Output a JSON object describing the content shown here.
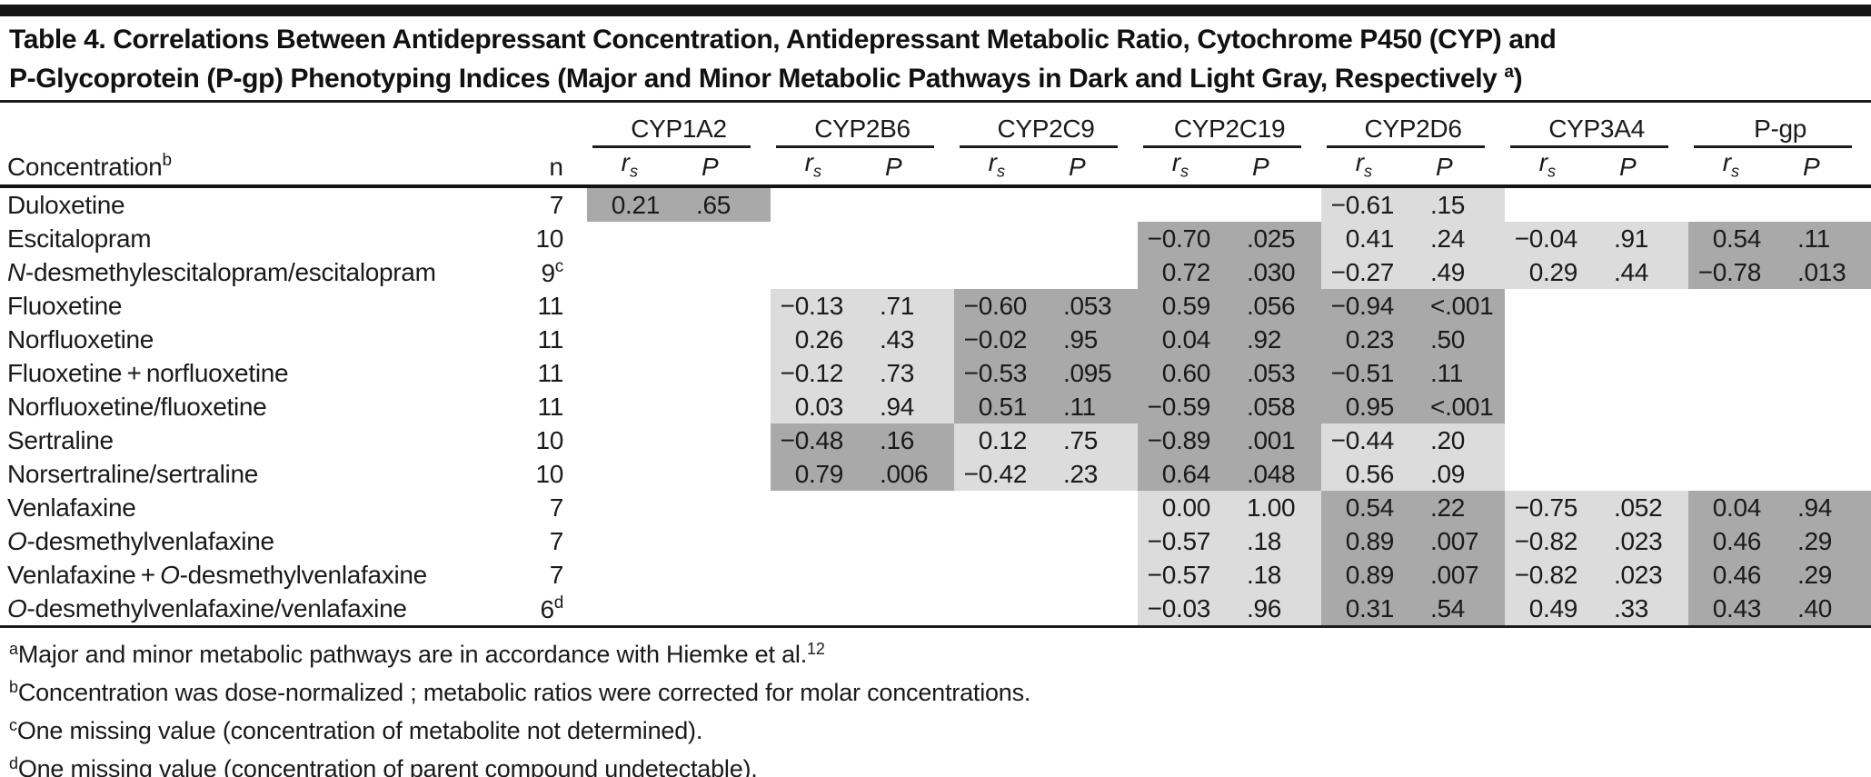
{
  "page": {
    "title_lines": [
      "Table 4. Correlations Between Antidepressant Concentration, Antidepressant Metabolic Ratio, Cytochrome P450 (CYP) and",
      "P-Glycoprotein (P-gp) Phenotyping Indices (Major and Minor Metabolic Pathways in Dark and Light Gray, Respectively"
    ],
    "title_sup": "a",
    "title_close": ")"
  },
  "colors": {
    "dark_gray": "#a9a9a9",
    "light_gray": "#dcdcdc"
  },
  "table": {
    "row_header_label": "Concentration",
    "row_header_sup": "b",
    "n_label": "n",
    "sub_rs": "r",
    "sub_rs_sub": "s",
    "sub_p": "P",
    "groups": [
      "CYP1A2",
      "CYP2B6",
      "CYP2C9",
      "CYP2C19",
      "CYP2D6",
      "CYP3A4",
      "P-gp"
    ],
    "rows": [
      {
        "label": [
          {
            "t": "Duloxetine"
          }
        ],
        "n": "7",
        "sup": "",
        "cells": [
          {
            "rs": "0.21",
            "p": ".65",
            "s": "dark"
          },
          null,
          null,
          null,
          {
            "rs": "−0.61",
            "p": ".15",
            "s": "light"
          },
          null,
          null
        ]
      },
      {
        "label": [
          {
            "t": "Escitalopram"
          }
        ],
        "n": "10",
        "sup": "",
        "cells": [
          null,
          null,
          null,
          {
            "rs": "−0.70",
            "p": ".025",
            "s": "dark"
          },
          {
            "rs": "0.41",
            "p": ".24",
            "s": "light"
          },
          {
            "rs": "−0.04",
            "p": ".91",
            "s": "light"
          },
          {
            "rs": "0.54",
            "p": ".11",
            "s": "dark"
          }
        ]
      },
      {
        "label": [
          {
            "t": "N",
            "i": true
          },
          {
            "t": "-desmethylescitalopram/escitalopram"
          }
        ],
        "n": "9",
        "sup": "c",
        "cells": [
          null,
          null,
          null,
          {
            "rs": "0.72",
            "p": ".030",
            "s": "dark"
          },
          {
            "rs": "−0.27",
            "p": ".49",
            "s": "light"
          },
          {
            "rs": "0.29",
            "p": ".44",
            "s": "light"
          },
          {
            "rs": "−0.78",
            "p": ".013",
            "s": "dark"
          }
        ]
      },
      {
        "label": [
          {
            "t": "Fluoxetine"
          }
        ],
        "n": "11",
        "sup": "",
        "cells": [
          null,
          {
            "rs": "−0.13",
            "p": ".71",
            "s": "light"
          },
          {
            "rs": "−0.60",
            "p": ".053",
            "s": "dark"
          },
          {
            "rs": "0.59",
            "p": ".056",
            "s": "dark"
          },
          {
            "rs": "−0.94",
            "p": "<.001",
            "s": "dark"
          },
          null,
          null
        ]
      },
      {
        "label": [
          {
            "t": "Norfluoxetine"
          }
        ],
        "n": "11",
        "sup": "",
        "cells": [
          null,
          {
            "rs": "0.26",
            "p": ".43",
            "s": "light"
          },
          {
            "rs": "−0.02",
            "p": ".95",
            "s": "dark"
          },
          {
            "rs": "0.04",
            "p": ".92",
            "s": "dark"
          },
          {
            "rs": "0.23",
            "p": ".50",
            "s": "dark"
          },
          null,
          null
        ]
      },
      {
        "label": [
          {
            "t": "Fluoxetine + norfluoxetine"
          }
        ],
        "n": "11",
        "sup": "",
        "cells": [
          null,
          {
            "rs": "−0.12",
            "p": ".73",
            "s": "light"
          },
          {
            "rs": "−0.53",
            "p": ".095",
            "s": "dark"
          },
          {
            "rs": "0.60",
            "p": ".053",
            "s": "dark"
          },
          {
            "rs": "−0.51",
            "p": ".11",
            "s": "dark"
          },
          null,
          null
        ]
      },
      {
        "label": [
          {
            "t": "Norfluoxetine/fluoxetine"
          }
        ],
        "n": "11",
        "sup": "",
        "cells": [
          null,
          {
            "rs": "0.03",
            "p": ".94",
            "s": "light"
          },
          {
            "rs": "0.51",
            "p": ".11",
            "s": "dark"
          },
          {
            "rs": "−0.59",
            "p": ".058",
            "s": "dark"
          },
          {
            "rs": "0.95",
            "p": "<.001",
            "s": "dark"
          },
          null,
          null
        ]
      },
      {
        "label": [
          {
            "t": "Sertraline"
          }
        ],
        "n": "10",
        "sup": "",
        "cells": [
          null,
          {
            "rs": "−0.48",
            "p": ".16",
            "s": "dark"
          },
          {
            "rs": "0.12",
            "p": ".75",
            "s": "light"
          },
          {
            "rs": "−0.89",
            "p": ".001",
            "s": "dark"
          },
          {
            "rs": "−0.44",
            "p": ".20",
            "s": "light"
          },
          null,
          null
        ]
      },
      {
        "label": [
          {
            "t": "Norsertraline/sertraline"
          }
        ],
        "n": "10",
        "sup": "",
        "cells": [
          null,
          {
            "rs": "0.79",
            "p": ".006",
            "s": "dark"
          },
          {
            "rs": "−0.42",
            "p": ".23",
            "s": "light"
          },
          {
            "rs": "0.64",
            "p": ".048",
            "s": "dark"
          },
          {
            "rs": "0.56",
            "p": ".09",
            "s": "light"
          },
          null,
          null
        ]
      },
      {
        "label": [
          {
            "t": "Venlafaxine"
          }
        ],
        "n": "7",
        "sup": "",
        "cells": [
          null,
          null,
          null,
          {
            "rs": "0.00",
            "p": "1.00",
            "s": "light"
          },
          {
            "rs": "0.54",
            "p": ".22",
            "s": "dark"
          },
          {
            "rs": "−0.75",
            "p": ".052",
            "s": "light"
          },
          {
            "rs": "0.04",
            "p": ".94",
            "s": "dark"
          }
        ]
      },
      {
        "label": [
          {
            "t": "O",
            "i": true
          },
          {
            "t": "-desmethylvenlafaxine"
          }
        ],
        "n": "7",
        "sup": "",
        "cells": [
          null,
          null,
          null,
          {
            "rs": "−0.57",
            "p": ".18",
            "s": "light"
          },
          {
            "rs": "0.89",
            "p": ".007",
            "s": "dark"
          },
          {
            "rs": "−0.82",
            "p": ".023",
            "s": "light"
          },
          {
            "rs": "0.46",
            "p": ".29",
            "s": "dark"
          }
        ]
      },
      {
        "label": [
          {
            "t": "Venlafaxine + "
          },
          {
            "t": "O",
            "i": true
          },
          {
            "t": "-desmethylvenlafaxine"
          }
        ],
        "n": "7",
        "sup": "",
        "cells": [
          null,
          null,
          null,
          {
            "rs": "−0.57",
            "p": ".18",
            "s": "light"
          },
          {
            "rs": "0.89",
            "p": ".007",
            "s": "dark"
          },
          {
            "rs": "−0.82",
            "p": ".023",
            "s": "light"
          },
          {
            "rs": "0.46",
            "p": ".29",
            "s": "dark"
          }
        ]
      },
      {
        "label": [
          {
            "t": "O",
            "i": true
          },
          {
            "t": "-desmethylvenlafaxine/venlafaxine"
          }
        ],
        "n": "6",
        "sup": "d",
        "cells": [
          null,
          null,
          null,
          {
            "rs": "−0.03",
            "p": ".96",
            "s": "light"
          },
          {
            "rs": "0.31",
            "p": ".54",
            "s": "dark"
          },
          {
            "rs": "0.49",
            "p": ".33",
            "s": "light"
          },
          {
            "rs": "0.43",
            "p": ".40",
            "s": "dark"
          }
        ]
      }
    ]
  },
  "footnotes": [
    {
      "sup": "a",
      "text": "Major and minor metabolic pathways are in accordance with Hiemke et al.",
      "tail_sup": "12"
    },
    {
      "sup": "b",
      "text": "Concentration was dose-normalized ; metabolic ratios were corrected for molar concentrations.",
      "tail_sup": ""
    },
    {
      "sup": "c",
      "text": "One missing value (concentration of metabolite not determined).",
      "tail_sup": ""
    },
    {
      "sup": "d",
      "text": "One missing value (concentration of parent compound undetectable).",
      "tail_sup": ""
    }
  ]
}
